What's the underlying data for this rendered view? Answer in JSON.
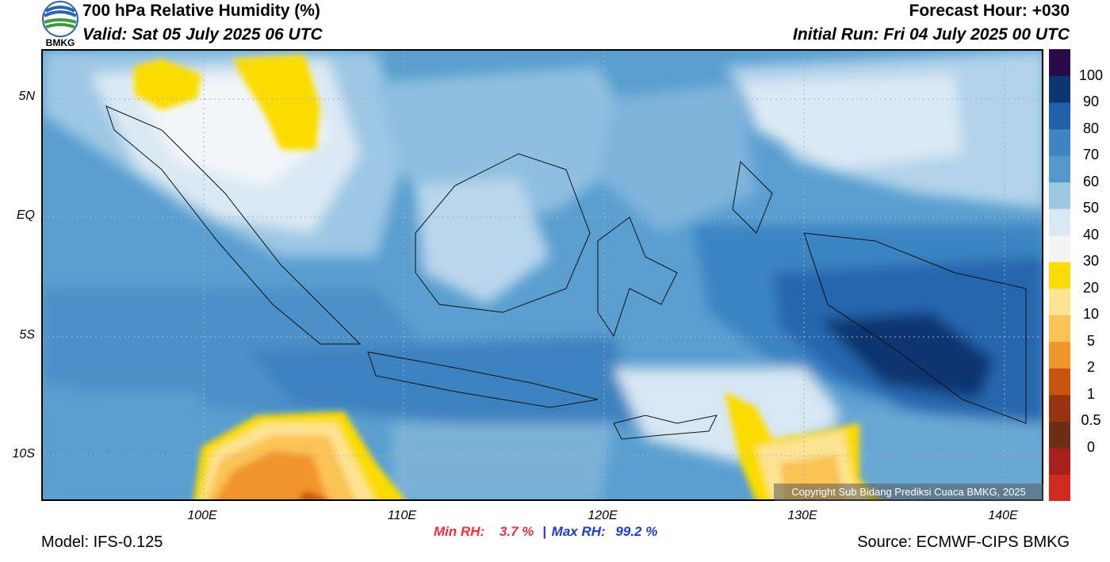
{
  "header": {
    "title": "700 hPa Relative Humidity (%)",
    "valid": "Valid: Sat 05 July 2025 06 UTC",
    "forecast_hour": "Forecast Hour: +030",
    "initial_run": "Initial Run: Fri 04 July 2025 00 UTC"
  },
  "logo": {
    "text": "BMKG",
    "icon": "bmkg-logo-icon"
  },
  "map": {
    "lat_labels": [
      "5N",
      "EQ",
      "5S",
      "10S"
    ],
    "lon_labels": [
      "100E",
      "110E",
      "120E",
      "130E",
      "140E"
    ],
    "copyright": "Copyright Sub Bidang Prediksi Cuaca BMKG, 2025"
  },
  "colorbar": {
    "labels": [
      "100",
      "90",
      "80",
      "70",
      "60",
      "50",
      "40",
      "30",
      "20",
      "10",
      "5",
      "2",
      "1",
      "0.5",
      "0"
    ],
    "colors": [
      "#cf2a1e",
      "#a81f1b",
      "#6e2d15",
      "#973411",
      "#c8550f",
      "#f2952b",
      "#fbc255",
      "#fde393",
      "#fcdc04",
      "#f4f4f4",
      "#d7e7f3",
      "#9cc8e4",
      "#5398cb",
      "#3e85c2",
      "#1f60aa",
      "#0d3570",
      "#2b0b4b"
    ]
  },
  "stats": {
    "min_label": "Min RH:",
    "min_value": "3.7 %",
    "separator": "|",
    "max_label": "Max RH:",
    "max_value": "99.2 %",
    "min_color": "#e8323c",
    "max_color": "#1e3cd2"
  },
  "footer": {
    "model": "Model: IFS-0.125",
    "source": "Source: ECMWF-CIPS BMKG"
  }
}
